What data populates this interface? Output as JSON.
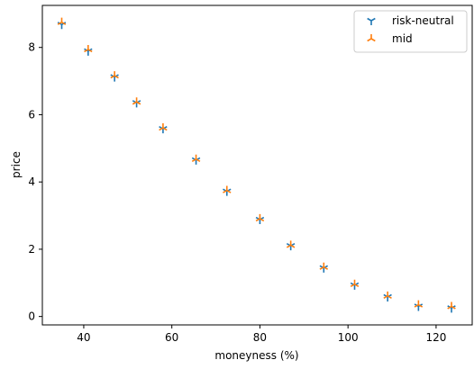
{
  "chart_data": {
    "type": "scatter",
    "title": "",
    "xlabel": "moneyness (%)",
    "ylabel": "price",
    "xlim": [
      30.6,
      128.2
    ],
    "ylim": [
      -0.25,
      9.25
    ],
    "xticks": [
      40,
      60,
      80,
      100,
      120
    ],
    "yticks": [
      0,
      2,
      4,
      6,
      8
    ],
    "grid": false,
    "legend_position": "top-right",
    "x": [
      35,
      41,
      47,
      52,
      58,
      65.5,
      72.5,
      80,
      87,
      94.5,
      101.5,
      109,
      116,
      123.5
    ],
    "series": [
      {
        "name": "risk-neutral",
        "marker": "tri-down",
        "color": "#1f77b4",
        "values": [
          8.68,
          7.89,
          7.12,
          6.35,
          5.58,
          4.65,
          3.72,
          2.88,
          2.1,
          1.44,
          0.93,
          0.58,
          0.3,
          0.25
        ]
      },
      {
        "name": "mid",
        "marker": "tri-up",
        "color": "#ff7f0e",
        "values": [
          8.75,
          7.94,
          7.16,
          6.38,
          5.61,
          4.68,
          3.75,
          2.91,
          2.12,
          1.47,
          0.96,
          0.61,
          0.35,
          0.3
        ]
      }
    ]
  }
}
